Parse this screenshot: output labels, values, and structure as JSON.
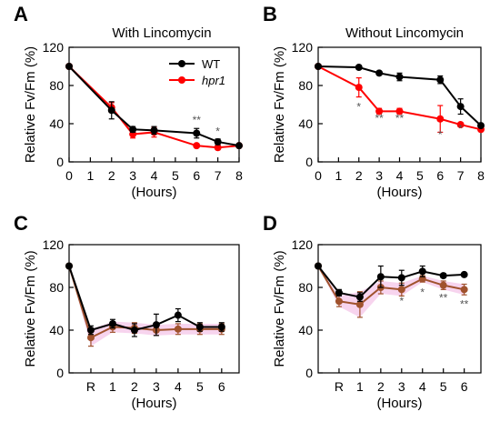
{
  "chart_data": [
    {
      "panel": "A",
      "type": "line",
      "title": "With Lincomycin",
      "xlabel": "(Hours)",
      "ylabel": "Relative Fv/Fm (%)",
      "x": [
        0,
        2,
        3,
        4,
        6,
        7,
        8
      ],
      "xtick_labels": [
        "0",
        "1",
        "2",
        "3",
        "4",
        "5",
        "6",
        "7",
        "8"
      ],
      "ylim": [
        0,
        120
      ],
      "yticks": [
        0,
        40,
        80,
        120
      ],
      "legend": [
        "WT",
        "hpr1"
      ],
      "series": [
        {
          "name": "WT",
          "color": "#000000",
          "values": [
            100,
            54,
            34,
            33,
            30,
            21,
            17
          ],
          "errors": [
            0,
            9,
            3,
            4,
            5,
            3,
            2
          ]
        },
        {
          "name": "hpr1",
          "color": "#ff0000",
          "values": [
            100,
            57,
            29,
            31,
            17,
            15,
            17
          ],
          "errors": [
            0,
            5,
            4,
            5,
            2,
            1,
            1
          ]
        }
      ],
      "annotations": [
        {
          "x": 6,
          "y": 40,
          "text": "**"
        },
        {
          "x": 7,
          "y": 28,
          "text": "*"
        }
      ]
    },
    {
      "panel": "B",
      "type": "line",
      "title": "Without Lincomycin",
      "xlabel": "(Hours)",
      "ylabel": "Relative Fv/Fm (%)",
      "x": [
        0,
        2,
        3,
        4,
        6,
        7,
        8
      ],
      "xtick_labels": [
        "0",
        "1",
        "2",
        "3",
        "4",
        "5",
        "6",
        "7",
        "8"
      ],
      "ylim": [
        0,
        120
      ],
      "yticks": [
        0,
        40,
        80,
        120
      ],
      "series": [
        {
          "name": "WT",
          "color": "#000000",
          "values": [
            100,
            99,
            93,
            89,
            86,
            58,
            38
          ],
          "errors": [
            0,
            2,
            2,
            4,
            4,
            8,
            2
          ]
        },
        {
          "name": "hpr1",
          "color": "#ff0000",
          "values": [
            100,
            78,
            53,
            53,
            45,
            39,
            34
          ],
          "errors": [
            0,
            10,
            3,
            3,
            14,
            2,
            2
          ]
        }
      ],
      "annotations": [
        {
          "x": 2,
          "y": 54,
          "text": "*"
        },
        {
          "x": 3,
          "y": 42,
          "text": "**"
        },
        {
          "x": 4,
          "y": 42,
          "text": "**"
        },
        {
          "x": 6,
          "y": 25,
          "text": "*"
        },
        {
          "x": 7,
          "y": 31,
          "text": "*"
        }
      ]
    },
    {
      "panel": "C",
      "type": "line",
      "xlabel": "(Hours)",
      "ylabel": "Relative Fv/Fm (%)",
      "x": [
        0,
        1,
        2,
        3,
        4,
        5,
        6,
        7
      ],
      "xtick_labels": [
        "R",
        "1",
        "2",
        "3",
        "4",
        "5",
        "6"
      ],
      "ylim": [
        0,
        120
      ],
      "yticks": [
        0,
        40,
        80,
        120
      ],
      "series": [
        {
          "name": "WT",
          "color": "#000000",
          "values": [
            100,
            40,
            46,
            40,
            45,
            54,
            43,
            43
          ],
          "errors": [
            0,
            4,
            4,
            6,
            10,
            6,
            4,
            4
          ]
        },
        {
          "name": "hpr1",
          "color": "#a0522d",
          "values": [
            100,
            33,
            43,
            42,
            40,
            41,
            41,
            41
          ],
          "errors": [
            0,
            8,
            5,
            5,
            5,
            5,
            5,
            5
          ]
        }
      ]
    },
    {
      "panel": "D",
      "type": "line",
      "xlabel": "(Hours)",
      "ylabel": "Relative Fv/Fm (%)",
      "x": [
        0,
        1,
        2,
        3,
        4,
        5,
        6,
        7
      ],
      "xtick_labels": [
        "R",
        "1",
        "2",
        "3",
        "4",
        "5",
        "6"
      ],
      "ylim": [
        0,
        120
      ],
      "yticks": [
        0,
        40,
        80,
        120
      ],
      "series": [
        {
          "name": "WT",
          "color": "#000000",
          "values": [
            100,
            75,
            71,
            90,
            89,
            95,
            91,
            92
          ],
          "errors": [
            0,
            3,
            4,
            10,
            7,
            5,
            2,
            1
          ]
        },
        {
          "name": "hpr1",
          "color": "#a0522d",
          "values": [
            100,
            67,
            64,
            80,
            78,
            88,
            82,
            78
          ],
          "errors": [
            0,
            5,
            12,
            6,
            6,
            3,
            4,
            5
          ]
        }
      ],
      "annotations": [
        {
          "x": 4,
          "y": 64,
          "text": "*"
        },
        {
          "x": 5,
          "y": 72,
          "text": "*"
        },
        {
          "x": 6,
          "y": 67,
          "text": "**"
        },
        {
          "x": 7,
          "y": 61,
          "text": "**"
        }
      ]
    }
  ]
}
